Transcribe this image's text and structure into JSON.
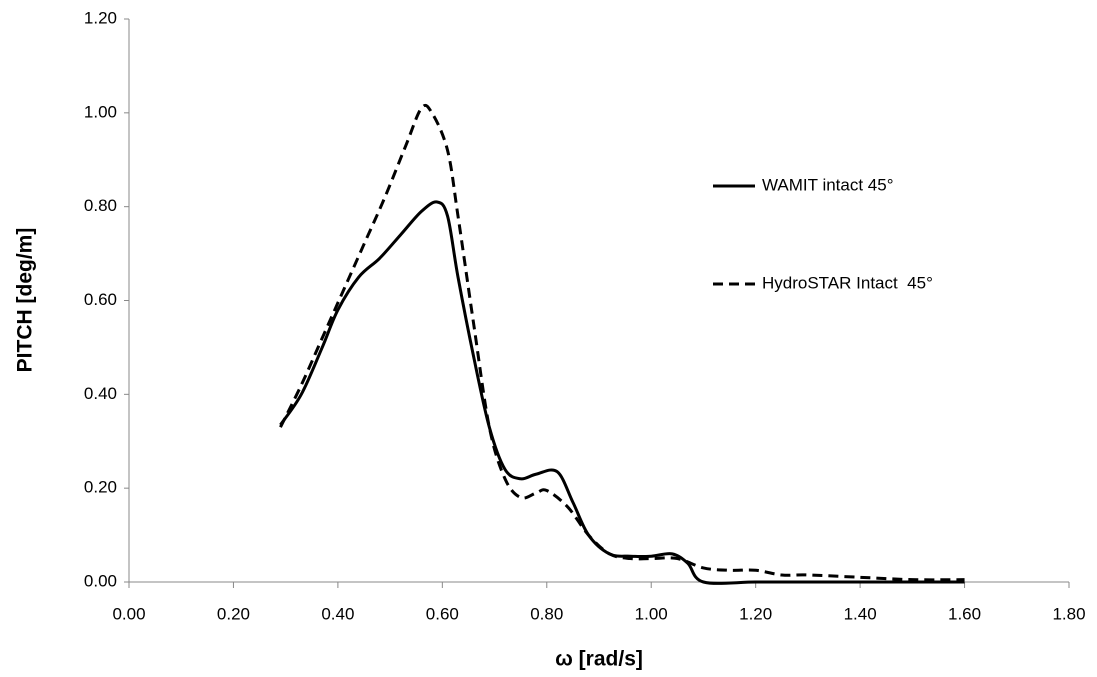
{
  "chart_data": {
    "type": "line",
    "xlabel": "ω [rad/s]",
    "ylabel": "PITCH [deg/m]",
    "xlim": [
      0,
      1.8
    ],
    "xticks": [
      {
        "value": 0,
        "label": "0.00"
      },
      {
        "value": 0.2,
        "label": "0.20"
      },
      {
        "value": 0.4,
        "label": "0.40"
      },
      {
        "value": 0.6,
        "label": "0.60"
      },
      {
        "value": 0.8,
        "label": "0.80"
      },
      {
        "value": 1.0,
        "label": "1.00"
      },
      {
        "value": 1.2,
        "label": "1.20"
      },
      {
        "value": 1.4,
        "label": "1.40"
      },
      {
        "value": 1.6,
        "label": "1.60"
      },
      {
        "value": 1.8,
        "label": "1.80"
      }
    ],
    "ylim": [
      0,
      1.2
    ],
    "yticks": [
      {
        "value": 0,
        "label": "0.00"
      },
      {
        "value": 0.2,
        "label": "0.20"
      },
      {
        "value": 0.4,
        "label": "0.40"
      },
      {
        "value": 0.6,
        "label": "0.60"
      },
      {
        "value": 0.8,
        "label": "0.80"
      },
      {
        "value": 1.0,
        "label": "1.00"
      },
      {
        "value": 1.2,
        "label": "1.20"
      }
    ],
    "grid": false,
    "legend": "right",
    "series": [
      {
        "name": "WAMIT intact 45°",
        "color": "#000000",
        "dash": "solid",
        "x": [
          0.29,
          0.33,
          0.37,
          0.4,
          0.44,
          0.48,
          0.52,
          0.56,
          0.59,
          0.61,
          0.63,
          0.66,
          0.69,
          0.72,
          0.75,
          0.78,
          0.82,
          0.85,
          0.88,
          0.92,
          0.96,
          1.0,
          1.04,
          1.07,
          1.1,
          1.2,
          1.3,
          1.4,
          1.5,
          1.6
        ],
        "values": [
          0.335,
          0.4,
          0.5,
          0.58,
          0.65,
          0.69,
          0.74,
          0.79,
          0.81,
          0.78,
          0.65,
          0.48,
          0.33,
          0.24,
          0.22,
          0.23,
          0.235,
          0.17,
          0.1,
          0.06,
          0.055,
          0.055,
          0.06,
          0.04,
          0.0,
          0.0,
          0.0,
          0.0,
          0.0,
          0.0
        ]
      },
      {
        "name": "HydroSTAR Intact  45°",
        "color": "#000000",
        "dash": "dashed",
        "x": [
          0.29,
          0.33,
          0.37,
          0.41,
          0.45,
          0.49,
          0.53,
          0.56,
          0.58,
          0.61,
          0.63,
          0.66,
          0.69,
          0.72,
          0.75,
          0.78,
          0.8,
          0.84,
          0.88,
          0.92,
          0.96,
          1.0,
          1.05,
          1.1,
          1.15,
          1.2,
          1.25,
          1.3,
          1.4,
          1.5,
          1.6
        ],
        "values": [
          0.33,
          0.42,
          0.52,
          0.62,
          0.72,
          0.82,
          0.93,
          1.01,
          1.0,
          0.92,
          0.78,
          0.55,
          0.33,
          0.22,
          0.18,
          0.19,
          0.195,
          0.16,
          0.1,
          0.06,
          0.05,
          0.05,
          0.05,
          0.03,
          0.025,
          0.025,
          0.015,
          0.015,
          0.01,
          0.005,
          0.005
        ]
      }
    ]
  }
}
